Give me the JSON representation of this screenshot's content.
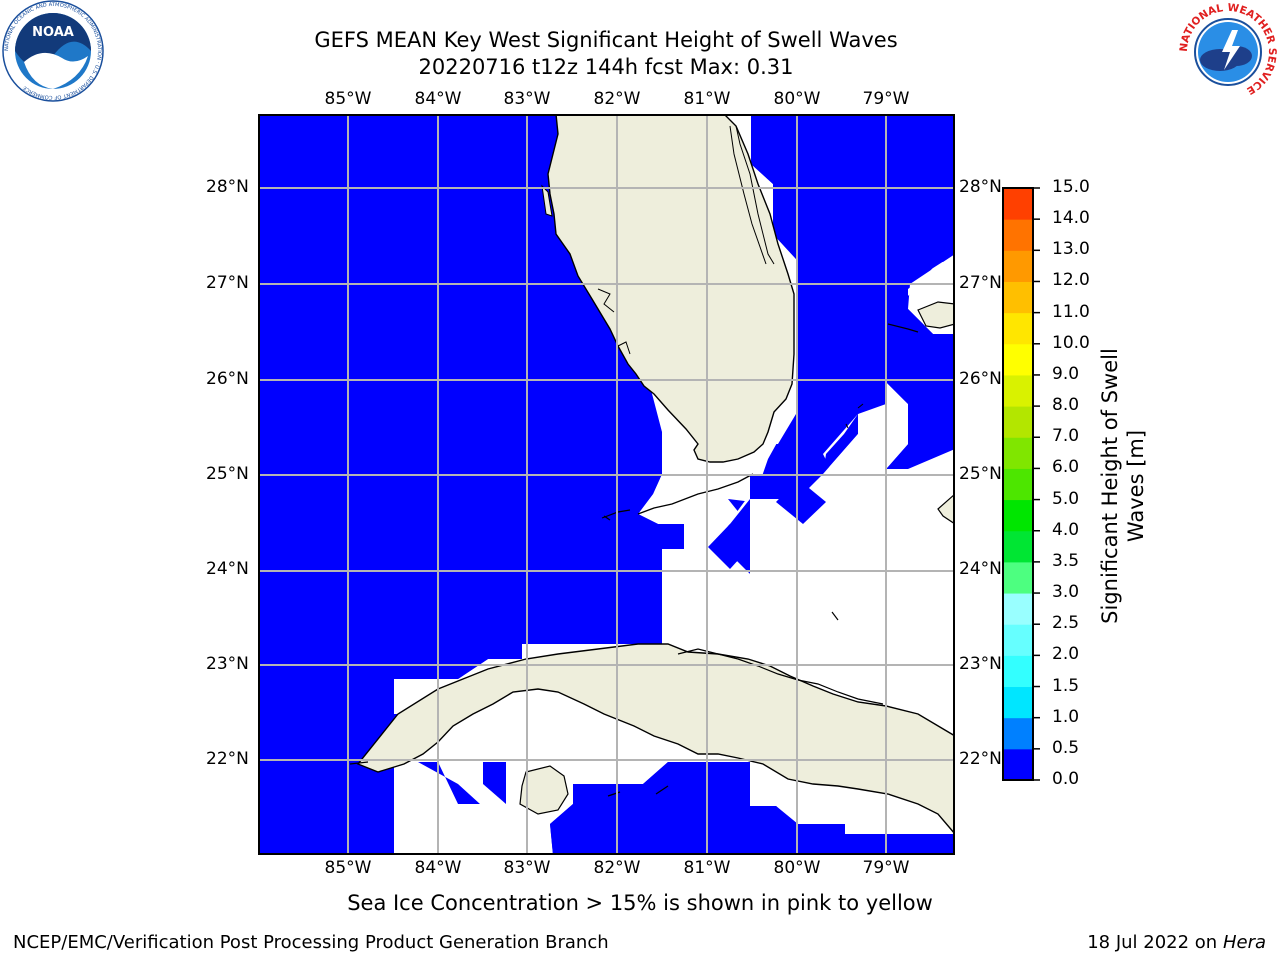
{
  "title": {
    "line1": "GEFS MEAN Key West Significant Height of Swell Waves",
    "line2": "20220716 t12z 144h fcst   Max: 0.31"
  },
  "logos": {
    "left": {
      "text": "NOAA",
      "ring_text": "NATIONAL OCEANIC AND ATMOSPHERIC ADMINISTRATION · U.S. DEPARTMENT OF COMMERCE",
      "icon": "noaa-logo"
    },
    "right": {
      "ring_text": "NATIONAL WEATHER SERVICE",
      "icon": "nws-logo"
    }
  },
  "map": {
    "lon_labels": [
      "85°W",
      "84°W",
      "83°W",
      "82°W",
      "81°W",
      "80°W",
      "79°W"
    ],
    "lat_labels": [
      "28°N",
      "27°N",
      "26°N",
      "25°N",
      "24°N",
      "23°N",
      "22°N"
    ],
    "colors": {
      "water": "#0000ff",
      "land": "#eeeedc",
      "nodata": "#ffffff",
      "grid": "#b4b4b4",
      "coast": "#000000"
    }
  },
  "colorbar": {
    "label_line1": "Significant Height of Swell",
    "label_line2": "Waves [m]",
    "ticks": [
      "0.0",
      "0.5",
      "1.0",
      "1.5",
      "2.0",
      "2.5",
      "3.0",
      "3.5",
      "4.0",
      "5.0",
      "6.0",
      "7.0",
      "8.0",
      "9.0",
      "10.0",
      "11.0",
      "12.0",
      "13.0",
      "14.0",
      "15.0"
    ],
    "colors": [
      "#0000ff",
      "#0080ff",
      "#00e6ff",
      "#33ffff",
      "#66ffff",
      "#99ffff",
      "#4dff80",
      "#00e633",
      "#00e600",
      "#4de600",
      "#80e600",
      "#b3e600",
      "#d9f200",
      "#ffff00",
      "#ffe600",
      "#ffbf00",
      "#ff9900",
      "#ff7300",
      "#ff4000",
      "#ff0000"
    ]
  },
  "notes": {
    "sea_ice": "Sea Ice Concentration > 15% is shown in pink to yellow"
  },
  "footer": {
    "left": "NCEP/EMC/Verification Post Processing Product Generation Branch",
    "date": "18 Jul 2022 on ",
    "machine": "Hera"
  }
}
